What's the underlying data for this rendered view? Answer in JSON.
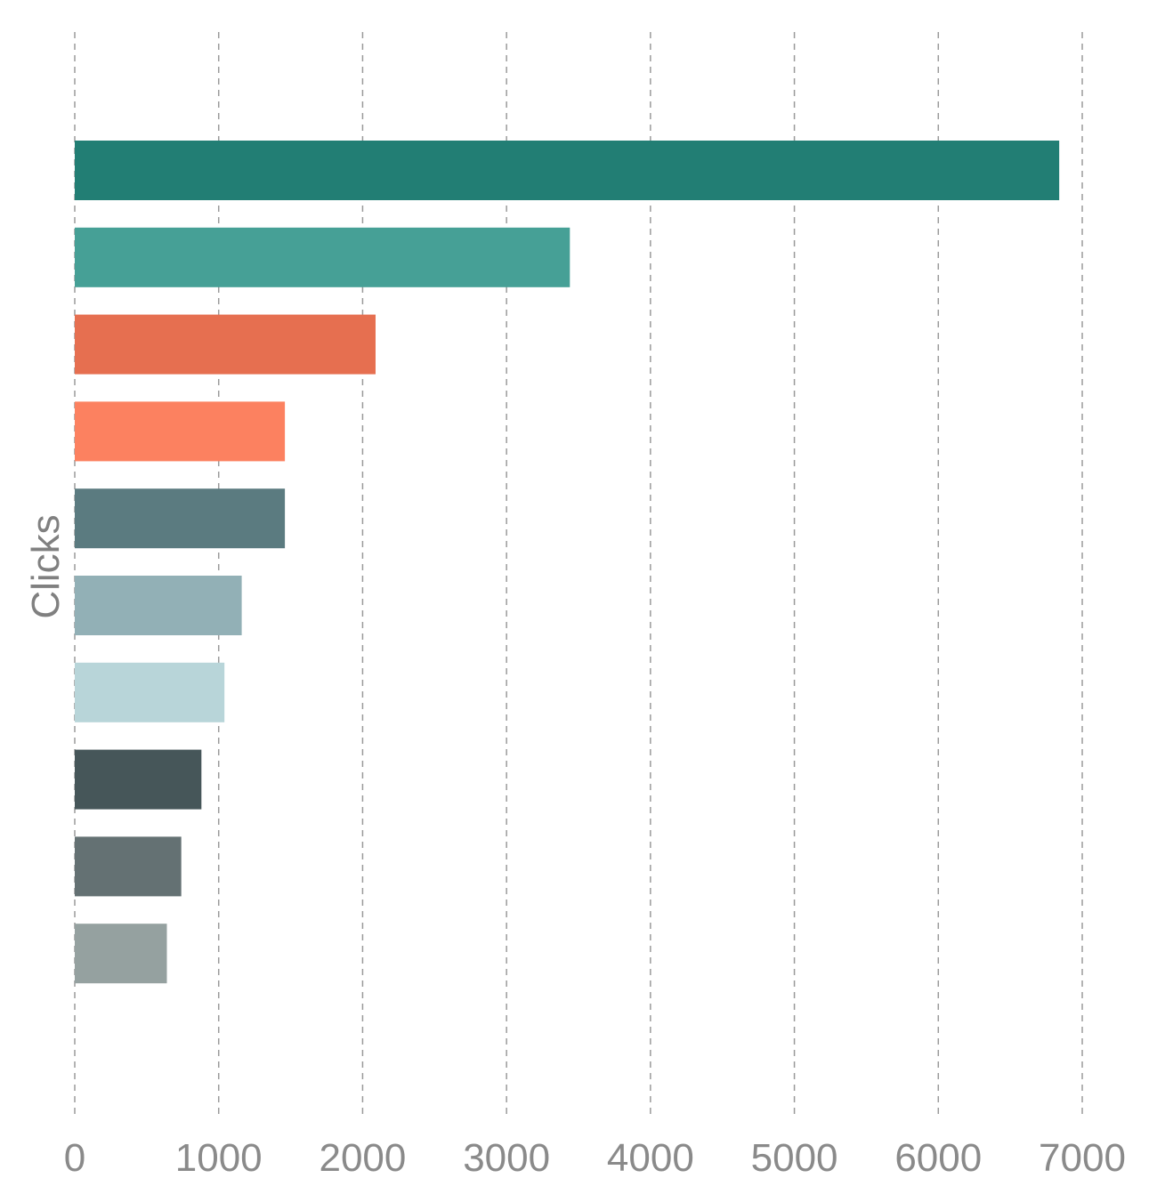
{
  "chart_data": {
    "type": "bar",
    "orientation": "horizontal",
    "xlabel": "",
    "ylabel": "Clicks",
    "xlim": [
      0,
      7000
    ],
    "x_ticks": [
      0,
      1000,
      2000,
      3000,
      4000,
      5000,
      6000,
      7000
    ],
    "grid": "vertical-dashed",
    "legend": "none",
    "values": [
      6840,
      3440,
      2090,
      1460,
      1460,
      1160,
      1040,
      880,
      740,
      640
    ],
    "colors": [
      "#227e74",
      "#46a096",
      "#e66f50",
      "#fc8160",
      "#5b7b80",
      "#92b0b6",
      "#b8d5d9",
      "#465659",
      "#647173",
      "#95a1a0"
    ]
  }
}
